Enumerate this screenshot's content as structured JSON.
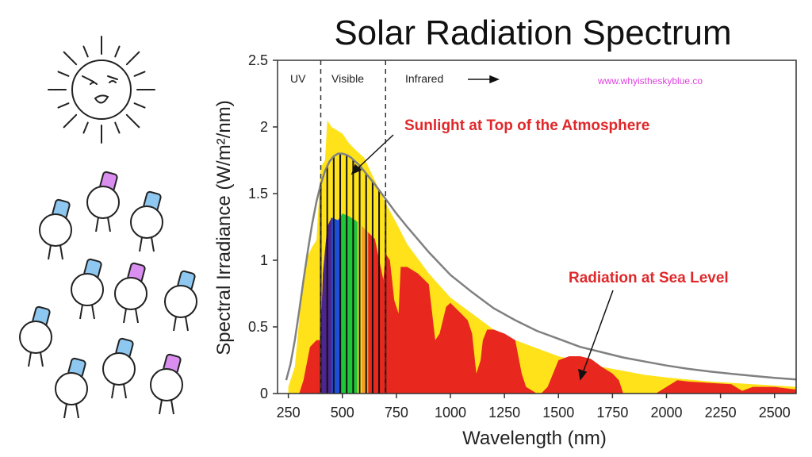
{
  "chart_data": {
    "type": "area",
    "title": "Solar Radiation Spectrum",
    "xlabel": "Wavelength (nm)",
    "ylabel": "Spectral Irradiance (W/m²/nm)",
    "xlim": [
      200,
      2600
    ],
    "ylim": [
      0,
      2.5
    ],
    "x_ticks": [
      250,
      500,
      750,
      1000,
      1250,
      1500,
      1750,
      2000,
      2250,
      2500
    ],
    "y_ticks": [
      0,
      0.5,
      1,
      1.5,
      2,
      2.5
    ],
    "y_tick_labels": [
      "0",
      "0.5",
      "1",
      "1.5",
      "2",
      "2.5"
    ],
    "grid": false,
    "region_boundaries": [
      400,
      700
    ],
    "regions": {
      "uv": "UV",
      "visible": "Visible",
      "infrared": "Infrared"
    },
    "watermark": "www.whyistheskyblue.co",
    "annotations": {
      "top_of_atmosphere": "Sunlight at Top of the Atmosphere",
      "sea_level": "Radiation at Sea Level"
    },
    "colors": {
      "top_of_atmosphere_fill": "#ffe21a",
      "sea_level_fill": "#e8281e",
      "blackbody_curve": "#808080",
      "annotation_text": "#e0282a",
      "watermark": "#e040e0"
    },
    "series": [
      {
        "name": "Sunlight at Top of the Atmosphere",
        "x": [
          250,
          280,
          300,
          330,
          360,
          380,
          400,
          420,
          430,
          450,
          470,
          500,
          530,
          560,
          600,
          650,
          700,
          750,
          800,
          900,
          1000,
          1100,
          1200,
          1300,
          1400,
          1500,
          1600,
          1700,
          1800,
          1900,
          2000,
          2200,
          2400,
          2600
        ],
        "y": [
          0.05,
          0.2,
          0.55,
          1.0,
          1.1,
          1.15,
          1.7,
          1.75,
          2.05,
          2.0,
          1.98,
          1.95,
          1.88,
          1.83,
          1.77,
          1.6,
          1.43,
          1.28,
          1.12,
          0.9,
          0.72,
          0.6,
          0.48,
          0.4,
          0.34,
          0.28,
          0.24,
          0.2,
          0.17,
          0.14,
          0.12,
          0.09,
          0.07,
          0.05
        ]
      },
      {
        "name": "Radiation at Sea Level",
        "x": [
          300,
          320,
          350,
          380,
          400,
          410,
          430,
          450,
          480,
          500,
          530,
          560,
          600,
          650,
          690,
          700,
          720,
          740,
          760,
          770,
          800,
          850,
          900,
          930,
          950,
          980,
          1000,
          1050,
          1080,
          1100,
          1120,
          1140,
          1150,
          1170,
          1200,
          1250,
          1300,
          1330,
          1350,
          1400,
          1420,
          1450,
          1500,
          1550,
          1600,
          1650,
          1700,
          1750,
          1780,
          1800,
          1850,
          1900,
          1950,
          2000,
          2050,
          2100,
          2200,
          2300,
          2350,
          2400,
          2500,
          2600
        ],
        "y": [
          0.0,
          0.1,
          0.35,
          0.4,
          0.4,
          0.9,
          1.25,
          1.32,
          1.3,
          1.35,
          1.33,
          1.3,
          1.24,
          1.16,
          0.85,
          1.05,
          1.0,
          0.7,
          0.6,
          0.95,
          0.95,
          0.9,
          0.82,
          0.4,
          0.45,
          0.65,
          0.68,
          0.6,
          0.55,
          0.45,
          0.15,
          0.25,
          0.4,
          0.48,
          0.48,
          0.45,
          0.4,
          0.15,
          0.05,
          0.0,
          0.0,
          0.05,
          0.25,
          0.28,
          0.28,
          0.26,
          0.2,
          0.15,
          0.1,
          0.0,
          0.0,
          0.0,
          0.0,
          0.05,
          0.1,
          0.09,
          0.08,
          0.07,
          0.02,
          0.05,
          0.05,
          0.03
        ]
      },
      {
        "name": "Blackbody curve",
        "x": [
          240,
          260,
          280,
          300,
          320,
          340,
          360,
          380,
          400,
          420,
          440,
          460,
          480,
          500,
          520,
          540,
          560,
          580,
          600,
          650,
          700,
          750,
          800,
          900,
          1000,
          1100,
          1200,
          1300,
          1400,
          1500,
          1600,
          1700,
          1800,
          1900,
          2000,
          2100,
          2200,
          2300,
          2400,
          2500,
          2600
        ],
        "y": [
          0.1,
          0.22,
          0.4,
          0.62,
          0.85,
          1.07,
          1.27,
          1.44,
          1.57,
          1.67,
          1.74,
          1.78,
          1.8,
          1.8,
          1.79,
          1.77,
          1.74,
          1.71,
          1.67,
          1.57,
          1.46,
          1.35,
          1.25,
          1.06,
          0.89,
          0.76,
          0.64,
          0.55,
          0.47,
          0.41,
          0.35,
          0.31,
          0.27,
          0.24,
          0.21,
          0.185,
          0.165,
          0.148,
          0.132,
          0.118,
          0.106
        ]
      }
    ],
    "visible_bands": [
      {
        "from": 400,
        "to": 450,
        "color": "#4b2690"
      },
      {
        "from": 450,
        "to": 495,
        "color": "#1f4fd8"
      },
      {
        "from": 495,
        "to": 570,
        "color": "#1fc63a"
      },
      {
        "from": 570,
        "to": 590,
        "color": "#f5ee2a"
      },
      {
        "from": 590,
        "to": 620,
        "color": "#f7a21a"
      },
      {
        "from": 620,
        "to": 700,
        "color": "#e8281e"
      }
    ],
    "visible_band_lines": [
      400,
      430,
      460,
      490,
      520,
      550,
      580,
      610,
      640,
      670,
      700
    ]
  }
}
